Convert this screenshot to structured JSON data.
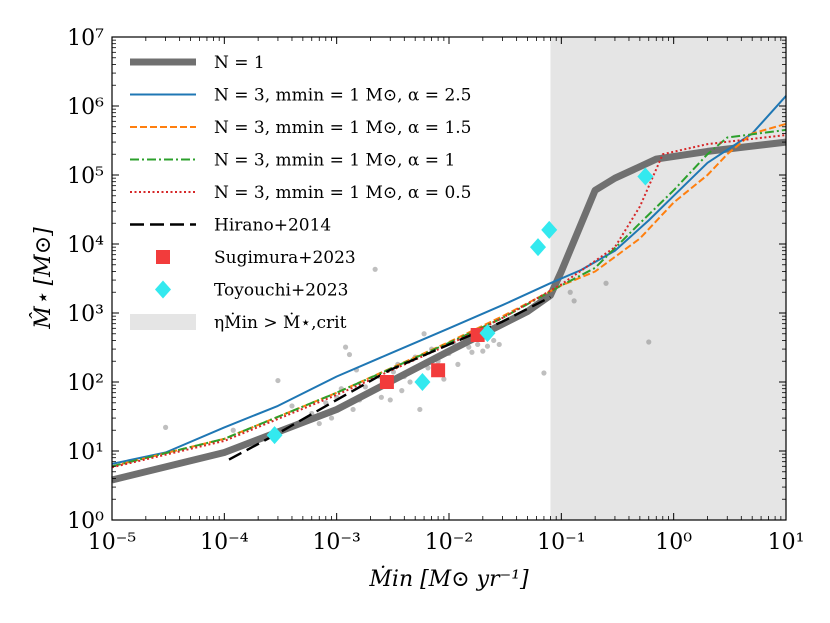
{
  "chart_data": {
    "type": "line",
    "xlabel": "Ṁin [M⊙ yr⁻¹]",
    "ylabel": "M̂⋆ [M⊙]",
    "x_scale": "log",
    "y_scale": "log",
    "xlim": [
      1e-05,
      10
    ],
    "ylim": [
      1,
      10000000
    ],
    "x_tick_labels": [
      "10⁻⁵",
      "10⁻⁴",
      "10⁻³",
      "10⁻²",
      "10⁻¹",
      "10⁰",
      "10¹"
    ],
    "y_tick_labels": [
      "10⁰",
      "10¹",
      "10²",
      "10³",
      "10⁴",
      "10⁵",
      "10⁶",
      "10⁷"
    ],
    "legend_position": "upper-left",
    "shaded_region": {
      "label": "ηṀin > Ṁ⋆,crit",
      "x_start": 0.08,
      "x_end": 10,
      "color": "#e5e5e5"
    },
    "series": [
      {
        "name": "N = 1",
        "color": "#707070",
        "style": "solid-thick",
        "points": [
          [
            1e-05,
            3.8
          ],
          [
            0.0001,
            9.5
          ],
          [
            0.001,
            40
          ],
          [
            0.01,
            280
          ],
          [
            0.05,
            1050
          ],
          [
            0.08,
            1800
          ],
          [
            0.1,
            4000
          ],
          [
            0.2,
            60000
          ],
          [
            0.3,
            90000
          ],
          [
            0.7,
            170000
          ],
          [
            2,
            220000
          ],
          [
            10,
            300000
          ]
        ]
      },
      {
        "name": "N = 3, mmin = 1 M⊙, α = 2.5",
        "color": "#1f77b4",
        "style": "solid",
        "points": [
          [
            1e-05,
            6.5
          ],
          [
            3e-05,
            9.5
          ],
          [
            0.0001,
            22
          ],
          [
            0.0003,
            45
          ],
          [
            0.001,
            120
          ],
          [
            0.003,
            260
          ],
          [
            0.01,
            600
          ],
          [
            0.03,
            1300
          ],
          [
            0.08,
            2700
          ],
          [
            0.15,
            4200
          ],
          [
            0.3,
            8000
          ],
          [
            0.6,
            22000
          ],
          [
            1,
            50000
          ],
          [
            2,
            150000
          ],
          [
            5,
            400000
          ],
          [
            10,
            1400000
          ]
        ]
      },
      {
        "name": "N = 3, mmin = 1 M⊙, α = 1.5",
        "color": "#ff7f0e",
        "style": "dashed",
        "points": [
          [
            1e-05,
            6
          ],
          [
            0.0001,
            15
          ],
          [
            0.001,
            70
          ],
          [
            0.01,
            380
          ],
          [
            0.03,
            900
          ],
          [
            0.1,
            2500
          ],
          [
            0.2,
            4000
          ],
          [
            0.5,
            12000
          ],
          [
            1,
            40000
          ],
          [
            2,
            100000
          ],
          [
            3,
            200000
          ],
          [
            5,
            400000
          ],
          [
            10,
            550000
          ]
        ]
      },
      {
        "name": "N = 3, mmin = 1 M⊙, α = 1",
        "color": "#2ca02c",
        "style": "dashdot",
        "points": [
          [
            1e-05,
            6
          ],
          [
            0.0001,
            15
          ],
          [
            0.001,
            70
          ],
          [
            0.01,
            370
          ],
          [
            0.03,
            850
          ],
          [
            0.1,
            2500
          ],
          [
            0.2,
            4500
          ],
          [
            0.5,
            20000
          ],
          [
            1,
            60000
          ],
          [
            2,
            200000
          ],
          [
            3,
            350000
          ],
          [
            10,
            450000
          ]
        ]
      },
      {
        "name": "N = 3, mmin = 1 M⊙, α = 0.5",
        "color": "#d62728",
        "style": "dotted",
        "points": [
          [
            1e-05,
            5.8
          ],
          [
            0.0001,
            14
          ],
          [
            0.001,
            65
          ],
          [
            0.01,
            350
          ],
          [
            0.03,
            850
          ],
          [
            0.1,
            2600
          ],
          [
            0.3,
            9000
          ],
          [
            0.5,
            35000
          ],
          [
            0.8,
            200000
          ],
          [
            2,
            280000
          ],
          [
            10,
            380000
          ]
        ]
      },
      {
        "name": "Hirano+2014",
        "color": "#000000",
        "style": "longdash",
        "points": [
          [
            0.00011,
            7.5
          ],
          [
            0.0003,
            18
          ],
          [
            0.001,
            55
          ],
          [
            0.003,
            150
          ],
          [
            0.01,
            350
          ],
          [
            0.03,
            750
          ],
          [
            0.08,
            1700
          ]
        ]
      }
    ],
    "markers": [
      {
        "name": "Sugimura+2023",
        "color": "#f23c3c",
        "shape": "square",
        "points": [
          [
            0.0028,
            100
          ],
          [
            0.008,
            148
          ],
          [
            0.018,
            480
          ]
        ]
      },
      {
        "name": "Toyouchi+2023",
        "color": "#33e9ef",
        "shape": "diamond",
        "points": [
          [
            0.00028,
            17
          ],
          [
            0.0058,
            100
          ],
          [
            0.022,
            510
          ],
          [
            0.062,
            9000
          ],
          [
            0.078,
            16000
          ],
          [
            0.56,
            95000
          ]
        ]
      }
    ],
    "background_points": [
      [
        3e-05,
        22
      ],
      [
        0.00012,
        20
      ],
      [
        0.0003,
        105
      ],
      [
        0.0004,
        45
      ],
      [
        0.0006,
        35
      ],
      [
        0.0007,
        25
      ],
      [
        0.0008,
        50
      ],
      [
        0.0009,
        30
      ],
      [
        0.001,
        60
      ],
      [
        0.0011,
        80
      ],
      [
        0.0012,
        320
      ],
      [
        0.0013,
        250
      ],
      [
        0.0014,
        40
      ],
      [
        0.0015,
        150
      ],
      [
        0.0016,
        55
      ],
      [
        0.0018,
        85
      ],
      [
        0.002,
        70
      ],
      [
        0.0022,
        4300
      ],
      [
        0.0024,
        120
      ],
      [
        0.0025,
        60
      ],
      [
        0.0027,
        90
      ],
      [
        0.003,
        55
      ],
      [
        0.0032,
        140
      ],
      [
        0.0035,
        180
      ],
      [
        0.0038,
        75
      ],
      [
        0.004,
        120
      ],
      [
        0.0045,
        100
      ],
      [
        0.005,
        230
      ],
      [
        0.0055,
        40
      ],
      [
        0.006,
        500
      ],
      [
        0.0065,
        160
      ],
      [
        0.007,
        300
      ],
      [
        0.008,
        200
      ],
      [
        0.009,
        110
      ],
      [
        0.01,
        260
      ],
      [
        0.011,
        370
      ],
      [
        0.012,
        180
      ],
      [
        0.014,
        420
      ],
      [
        0.015,
        320
      ],
      [
        0.016,
        270
      ],
      [
        0.018,
        350
      ],
      [
        0.02,
        280
      ],
      [
        0.022,
        330
      ],
      [
        0.025,
        400
      ],
      [
        0.028,
        350
      ],
      [
        0.07,
        135
      ],
      [
        0.12,
        2000
      ],
      [
        0.13,
        1500
      ],
      [
        0.25,
        2700
      ],
      [
        0.6,
        380
      ]
    ]
  }
}
